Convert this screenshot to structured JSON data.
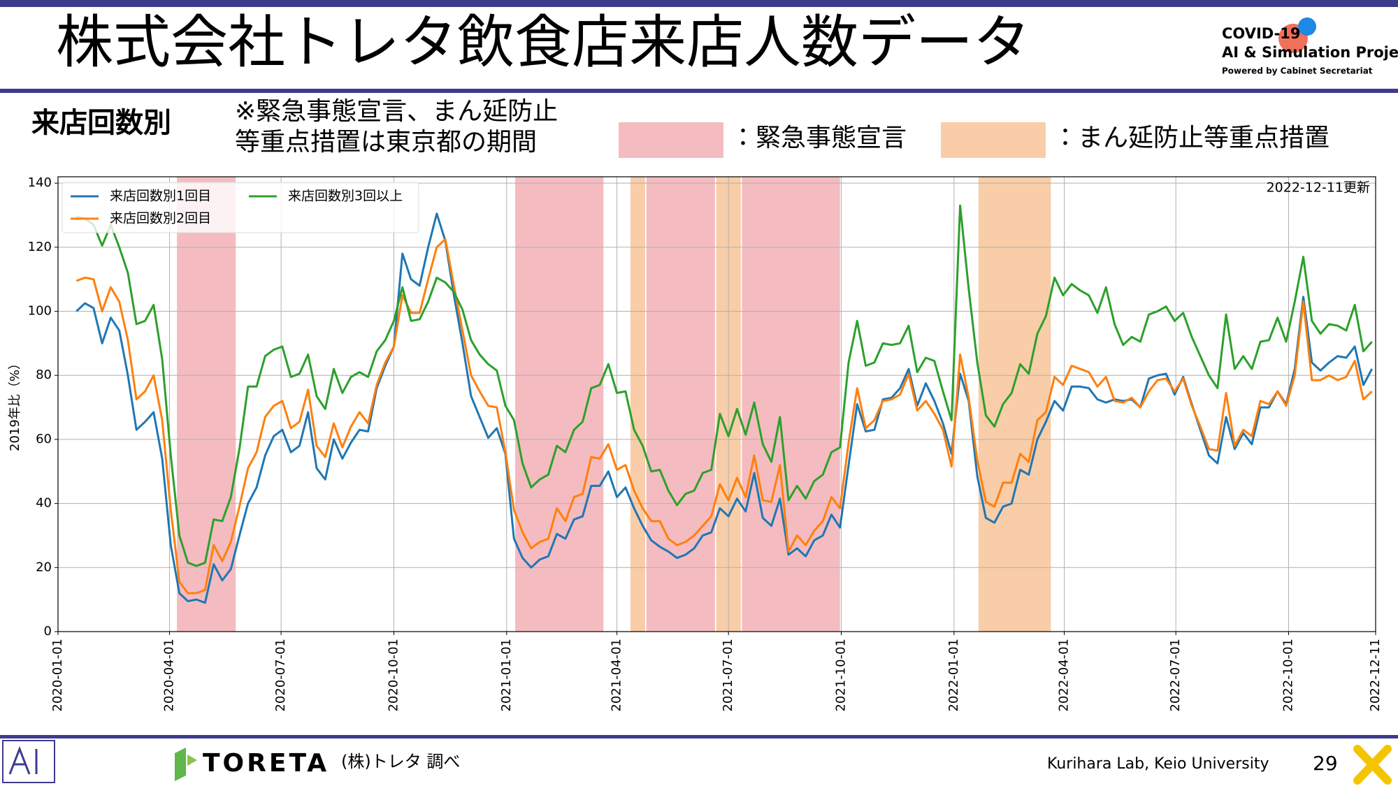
{
  "header": {
    "title": "株式会社トレタ飲食店来店人数データ",
    "logo_lines": [
      "COVID-19",
      "AI & Simulation Project",
      "Powered by Cabinet Secretariat"
    ]
  },
  "section": "来店回数別",
  "note_lines": [
    "※緊急事態宣言、まん延防止",
    "等重点措置は東京都の期間"
  ],
  "chart_data": {
    "type": "line",
    "ylabel": "2019年比（%）",
    "annotation": "2022-12-11更新",
    "grid": true,
    "legend": "upper left",
    "xlim": [
      "2020-01-01",
      "2022-12-11"
    ],
    "xticks": [
      "2020-01-01",
      "2020-04-01",
      "2020-07-01",
      "2020-10-01",
      "2021-01-01",
      "2021-04-01",
      "2021-07-01",
      "2021-10-01",
      "2022-01-01",
      "2022-04-01",
      "2022-07-01",
      "2022-10-01",
      "2022-12-11"
    ],
    "ylim": [
      0,
      142
    ],
    "yticks": [
      0,
      20,
      40,
      60,
      80,
      100,
      120,
      140
    ],
    "shading": [
      {
        "name": "：緊急事態宣言",
        "color": "#f4bcc0",
        "ranges": [
          [
            "2020-04-07",
            "2020-05-25"
          ],
          [
            "2021-01-08",
            "2021-03-21"
          ],
          [
            "2021-04-25",
            "2021-06-20"
          ],
          [
            "2021-07-12",
            "2021-09-30"
          ]
        ]
      },
      {
        "name": "：まん延防止等重点措置",
        "color": "#f8cda8",
        "ranges": [
          [
            "2021-04-12",
            "2021-04-24"
          ],
          [
            "2021-06-21",
            "2021-07-11"
          ],
          [
            "2022-01-21",
            "2022-03-21"
          ]
        ]
      }
    ],
    "x": [
      "2020-01-16",
      "2020-01-23",
      "2020-01-30",
      "2020-02-06",
      "2020-02-13",
      "2020-02-20",
      "2020-02-27",
      "2020-03-05",
      "2020-03-12",
      "2020-03-19",
      "2020-03-26",
      "2020-04-02",
      "2020-04-09",
      "2020-04-16",
      "2020-04-23",
      "2020-04-30",
      "2020-05-07",
      "2020-05-14",
      "2020-05-21",
      "2020-05-28",
      "2020-06-04",
      "2020-06-11",
      "2020-06-18",
      "2020-06-25",
      "2020-07-02",
      "2020-07-09",
      "2020-07-16",
      "2020-07-23",
      "2020-07-30",
      "2020-08-06",
      "2020-08-13",
      "2020-08-20",
      "2020-08-27",
      "2020-09-03",
      "2020-09-10",
      "2020-09-17",
      "2020-09-24",
      "2020-10-01",
      "2020-10-08",
      "2020-10-15",
      "2020-10-22",
      "2020-10-29",
      "2020-11-05",
      "2020-11-12",
      "2020-11-19",
      "2020-11-26",
      "2020-12-03",
      "2020-12-10",
      "2020-12-17",
      "2020-12-24",
      "2020-12-31",
      "2021-01-07",
      "2021-01-14",
      "2021-01-21",
      "2021-01-28",
      "2021-02-04",
      "2021-02-11",
      "2021-02-18",
      "2021-02-25",
      "2021-03-04",
      "2021-03-11",
      "2021-03-18",
      "2021-03-25",
      "2021-04-01",
      "2021-04-08",
      "2021-04-15",
      "2021-04-22",
      "2021-04-29",
      "2021-05-06",
      "2021-05-13",
      "2021-05-20",
      "2021-05-27",
      "2021-06-03",
      "2021-06-10",
      "2021-06-17",
      "2021-06-24",
      "2021-07-01",
      "2021-07-08",
      "2021-07-15",
      "2021-07-22",
      "2021-07-29",
      "2021-08-05",
      "2021-08-12",
      "2021-08-19",
      "2021-08-26",
      "2021-09-02",
      "2021-09-09",
      "2021-09-16",
      "2021-09-23",
      "2021-09-30",
      "2021-10-07",
      "2021-10-14",
      "2021-10-21",
      "2021-10-28",
      "2021-11-04",
      "2021-11-11",
      "2021-11-18",
      "2021-11-25",
      "2021-12-02",
      "2021-12-09",
      "2021-12-16",
      "2021-12-23",
      "2021-12-30",
      "2022-01-06",
      "2022-01-13",
      "2022-01-20",
      "2022-01-27",
      "2022-02-03",
      "2022-02-10",
      "2022-02-17",
      "2022-02-24",
      "2022-03-03",
      "2022-03-10",
      "2022-03-17",
      "2022-03-24",
      "2022-03-31",
      "2022-04-07",
      "2022-04-14",
      "2022-04-21",
      "2022-04-28",
      "2022-05-05",
      "2022-05-12",
      "2022-05-19",
      "2022-05-26",
      "2022-06-02",
      "2022-06-09",
      "2022-06-16",
      "2022-06-23",
      "2022-06-30",
      "2022-07-07",
      "2022-07-14",
      "2022-07-21",
      "2022-07-28",
      "2022-08-04",
      "2022-08-11",
      "2022-08-18",
      "2022-08-25",
      "2022-09-01",
      "2022-09-08",
      "2022-09-15",
      "2022-09-22",
      "2022-09-29",
      "2022-10-06",
      "2022-10-13",
      "2022-10-20",
      "2022-10-27",
      "2022-11-03",
      "2022-11-10",
      "2022-11-17",
      "2022-11-24",
      "2022-12-01",
      "2022-12-08"
    ],
    "series": [
      {
        "name": "来店回数別1回目",
        "color": "#1f77b4",
        "values": [
          100,
          102.5,
          101,
          90,
          98,
          94,
          80,
          63,
          65.5,
          68.5,
          54,
          27,
          12,
          9.5,
          10,
          9,
          21,
          16,
          19.5,
          30,
          40,
          45,
          55,
          61,
          63,
          56,
          58,
          68.5,
          51,
          47.5,
          60,
          54,
          59,
          63,
          62.5,
          76,
          83,
          89,
          118,
          110,
          108,
          120,
          130.5,
          122,
          105,
          90,
          73.5,
          67,
          60.5,
          63.5,
          55.5,
          29,
          23,
          20,
          22.5,
          23.5,
          30.5,
          29,
          35,
          36,
          45.5,
          45.5,
          50,
          42,
          45,
          38.5,
          33,
          28.5,
          26.5,
          25,
          23,
          24,
          26,
          30,
          31,
          38.5,
          36,
          41.5,
          37.5,
          49.5,
          35.5,
          33,
          41.5,
          24,
          26,
          23.5,
          28.5,
          30,
          36.5,
          32.5,
          52,
          71,
          62.5,
          63,
          72.5,
          73,
          76,
          82,
          70.5,
          77.5,
          72,
          65,
          55.5,
          80.5,
          72,
          48.5,
          35.5,
          34,
          39,
          40,
          50.5,
          49,
          60,
          65.5,
          72,
          69,
          76.5,
          76.5,
          76,
          72.5,
          71.5,
          72.5,
          72,
          72.5,
          70,
          79,
          80,
          80.5,
          74,
          79.5,
          71,
          63,
          55,
          52.5,
          67,
          57,
          62,
          58.5,
          70,
          70,
          75,
          71,
          82,
          104.5,
          84,
          81.5,
          84,
          86,
          85.5,
          89,
          77,
          82
        ]
      },
      {
        "name": "来店回数別2回目",
        "color": "#ff7f0e",
        "values": [
          109.5,
          110.5,
          110,
          100,
          107.5,
          103,
          91,
          72.5,
          75,
          80,
          66,
          38,
          15.5,
          12,
          12,
          13,
          27,
          22,
          28,
          39,
          51,
          56,
          67,
          70.5,
          72,
          63.5,
          65.5,
          75.5,
          58,
          54.5,
          65,
          57.5,
          64,
          68.5,
          65,
          77,
          84,
          89,
          105,
          99.5,
          99.5,
          110,
          120,
          122.5,
          108,
          94,
          80,
          75,
          70.5,
          70,
          56,
          38,
          31,
          26,
          28,
          29,
          38.5,
          34.5,
          42,
          43,
          54.5,
          54,
          58.5,
          50.5,
          52,
          44,
          38.5,
          34.5,
          34.5,
          29,
          27,
          28,
          30,
          33,
          36,
          46,
          41,
          48,
          42,
          55,
          41,
          40.5,
          52,
          25,
          30,
          27,
          31.5,
          34.5,
          42,
          38.5,
          59,
          76,
          63.5,
          66,
          72,
          72.5,
          74,
          80.5,
          69,
          72,
          68,
          63,
          51.5,
          86.5,
          73,
          53.5,
          40.5,
          39,
          46.5,
          46.5,
          55.5,
          53,
          66,
          68.5,
          79.5,
          77,
          83,
          82,
          81,
          76.5,
          79.5,
          72,
          71.5,
          73,
          70,
          75,
          78.5,
          79,
          75,
          79,
          70.5,
          64,
          57,
          56.5,
          74.5,
          58,
          63,
          61,
          72,
          71,
          75,
          70.5,
          80,
          103,
          78.5,
          78.5,
          80,
          78.5,
          79.5,
          84.5,
          72.5,
          75
        ]
      },
      {
        "name": "来店回数別3回以上",
        "color": "#2ca02c",
        "values": [
          129.5,
          129,
          127,
          120.5,
          127,
          120,
          112,
          96,
          97,
          102,
          85,
          55,
          30,
          21.5,
          20.5,
          21.5,
          35,
          34.5,
          42,
          57,
          76.5,
          76.5,
          86,
          88,
          89,
          79.5,
          80.5,
          86.5,
          73.5,
          69.5,
          82,
          74.5,
          79.5,
          81,
          79.5,
          87.5,
          91,
          97,
          107.5,
          97,
          97.5,
          103,
          110.5,
          109,
          106,
          100.5,
          91,
          86.5,
          83.5,
          81.5,
          70.5,
          66,
          52.5,
          45,
          47.5,
          49,
          58,
          56,
          63,
          65.5,
          76,
          77,
          83.5,
          74.5,
          75,
          63,
          58,
          50,
          50.5,
          44,
          39.5,
          43,
          44,
          49.5,
          50.5,
          68,
          61,
          69.5,
          61.5,
          71.5,
          58.5,
          53,
          67,
          41,
          45.5,
          41.5,
          47,
          49,
          56,
          57.5,
          84,
          97,
          83,
          84,
          90,
          89.5,
          90,
          95.5,
          81,
          85.5,
          84.5,
          75,
          66,
          133,
          107,
          84,
          67.5,
          64,
          71,
          74.5,
          83.5,
          80.5,
          93,
          98.5,
          110.5,
          105,
          108.5,
          106.5,
          105,
          99.5,
          107.5,
          96,
          89.5,
          92,
          90.5,
          99,
          100,
          101.5,
          97,
          99.5,
          92,
          86,
          80,
          76,
          99,
          82,
          86,
          82,
          90.5,
          91,
          98,
          90.5,
          103,
          117,
          97,
          93,
          96,
          95.5,
          94,
          102,
          87.5,
          90.5
        ]
      }
    ]
  },
  "footer": {
    "brand": "TORETA",
    "source": "(株)トレタ 調べ",
    "lab": "Kurihara Lab, Keio University",
    "page": "29"
  }
}
